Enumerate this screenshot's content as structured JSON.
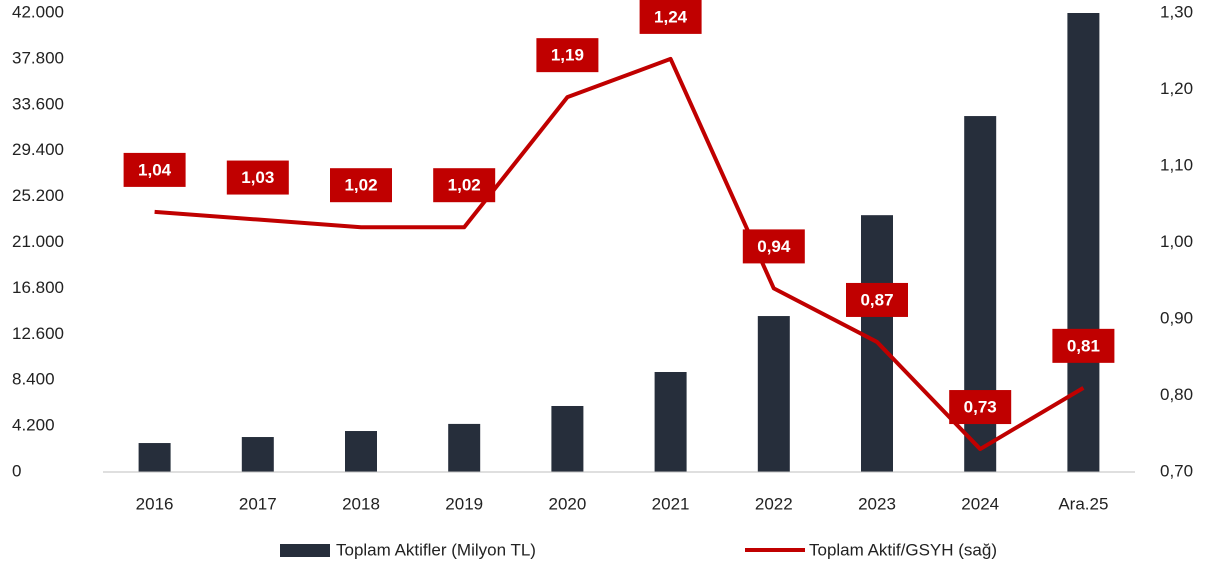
{
  "chart_data": {
    "type": "bar-line",
    "categories": [
      "2016",
      "2017",
      "2018",
      "2019",
      "2020",
      "2021",
      "2022",
      "2023",
      "2024",
      "Ara.25"
    ],
    "series": [
      {
        "name": "Toplam Aktifler (Milyon TL)",
        "type": "bar",
        "color": "#262e3b",
        "values": [
          2650,
          3200,
          3750,
          4400,
          6040,
          9150,
          14270,
          23500,
          32570,
          42000
        ]
      },
      {
        "name": "Toplam Aktif/GSYH (sağ)",
        "type": "line",
        "axis": "y2",
        "color": "#c00000",
        "values": [
          1.04,
          1.03,
          1.02,
          1.02,
          1.19,
          1.24,
          0.94,
          0.87,
          0.73,
          0.81
        ],
        "value_labels": [
          "1,04",
          "1,03",
          "1,02",
          "1,02",
          "1,19",
          "1,24",
          "0,94",
          "0,87",
          "0,73",
          "0,81"
        ]
      }
    ],
    "ylim": [
      0,
      42000
    ],
    "yticks": [
      0,
      {
        "value": 4200,
        "label": "4.200"
      },
      {
        "value": 8400,
        "label": "8.400"
      },
      {
        "value": 12600,
        "label": "12.600"
      },
      {
        "value": 16800,
        "label": "16.800"
      },
      {
        "value": 21000,
        "label": "21.000"
      },
      {
        "value": 25200,
        "label": "25.200"
      },
      {
        "value": 29400,
        "label": "29.400"
      },
      {
        "value": 33600,
        "label": "33.600"
      },
      {
        "value": 37800,
        "label": "37.800"
      },
      {
        "value": 42000,
        "label": "42.000"
      }
    ],
    "y2lim": [
      0.7,
      1.3
    ],
    "y2ticks": [
      {
        "value": 0.7,
        "label": "0,70"
      },
      {
        "value": 0.8,
        "label": "0,80"
      },
      {
        "value": 0.9,
        "label": "0,90"
      },
      {
        "value": 1.0,
        "label": "1,00"
      },
      {
        "value": 1.1,
        "label": "1,10"
      },
      {
        "value": 1.2,
        "label": "1,20"
      },
      {
        "value": 1.3,
        "label": "1,30"
      }
    ],
    "legend": "bottom"
  }
}
